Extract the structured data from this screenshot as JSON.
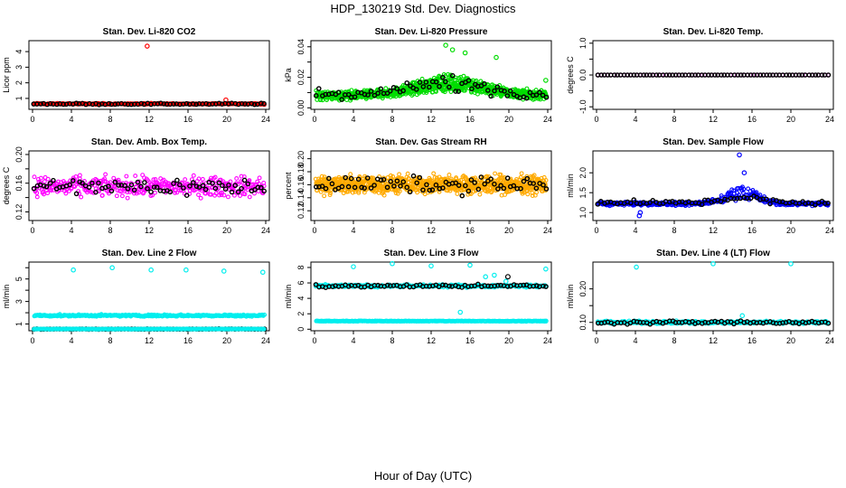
{
  "figure": {
    "title": "HDP_130219  Std. Dev. Diagnostics",
    "xlabel": "Hour of Day (UTC)"
  },
  "chart_data": [
    {
      "type": "scatter",
      "title": "Stan. Dev. Li-820 CO2",
      "ylabel": "Licor ppm",
      "xlim": [
        0,
        24
      ],
      "ylim": [
        0.3,
        4.7
      ],
      "xticks": [
        0,
        4,
        8,
        12,
        16,
        20,
        24
      ],
      "xtick_labels": [
        "0",
        "4",
        "8",
        "12",
        "16",
        "20",
        "24"
      ],
      "yticks": [
        1,
        2,
        3,
        4
      ],
      "ytick_labels": [
        "1",
        "2",
        "3",
        "4"
      ],
      "series": [
        {
          "name": "primary",
          "color": "#ff0000",
          "y_center": 0.65,
          "spread": 0.06,
          "points_per_hour": 12,
          "outliers": [
            {
              "x": 11.8,
              "y": 4.35
            },
            {
              "x": 19.9,
              "y": 0.9
            }
          ]
        },
        {
          "name": "hourly",
          "color": "#000000",
          "y_center": 0.65,
          "spread": 0.07,
          "points_per_hour": 3
        }
      ]
    },
    {
      "type": "scatter",
      "title": "Stan. Dev. Li-820 Pressure",
      "ylabel": "kPa",
      "xlim": [
        0,
        24
      ],
      "ylim": [
        -0.001,
        0.044
      ],
      "xticks": [
        0,
        4,
        8,
        12,
        16,
        20,
        24
      ],
      "xtick_labels": [
        "0",
        "4",
        "8",
        "12",
        "16",
        "20",
        "24"
      ],
      "yticks": [
        0,
        0.01,
        0.02,
        0.03,
        0.04
      ],
      "ytick_labels": [
        "0.00",
        "",
        "0.02",
        "",
        "0.04"
      ],
      "series": [
        {
          "name": "primary",
          "color": "#00dd00",
          "y_center": 0.008,
          "spread": 0.004,
          "points_per_hour": 40,
          "bulge": {
            "center": 14,
            "width": 5,
            "height": 0.009
          },
          "outliers": [
            {
              "x": 13.5,
              "y": 0.041
            },
            {
              "x": 14.2,
              "y": 0.038
            },
            {
              "x": 15.5,
              "y": 0.036
            },
            {
              "x": 18.7,
              "y": 0.033
            },
            {
              "x": 23.8,
              "y": 0.018
            }
          ]
        },
        {
          "name": "hourly",
          "color": "#000000",
          "y_center": 0.009,
          "spread": 0.005,
          "points_per_hour": 3,
          "bulge": {
            "center": 14,
            "width": 5,
            "height": 0.008
          }
        }
      ]
    },
    {
      "type": "scatter",
      "title": "Stan. Dev. Li-820 Temp.",
      "ylabel": "degrees C",
      "xlim": [
        0,
        24
      ],
      "ylim": [
        -1.08,
        1.08
      ],
      "xticks": [
        0,
        4,
        8,
        12,
        16,
        20,
        24
      ],
      "xtick_labels": [
        "0",
        "4",
        "8",
        "12",
        "16",
        "20",
        "24"
      ],
      "yticks": [
        -1,
        -0.5,
        0,
        0.5,
        1
      ],
      "ytick_labels": [
        "-1.0",
        "",
        "0.0",
        "",
        "1.0"
      ],
      "series": [
        {
          "name": "primary",
          "color": "#ff00ff",
          "y_center": 0,
          "spread": 0,
          "points_per_hour": 3
        },
        {
          "name": "hourly",
          "color": "#000000",
          "y_center": 0,
          "spread": 0,
          "points_per_hour": 3
        }
      ]
    },
    {
      "type": "scatter",
      "title": "Stan. Dev. Amb. Box Temp.",
      "ylabel": "degrees C",
      "xlim": [
        0,
        24
      ],
      "ylim": [
        0.108,
        0.205
      ],
      "xticks": [
        0,
        4,
        8,
        12,
        16,
        20,
        24
      ],
      "xtick_labels": [
        "0",
        "4",
        "8",
        "12",
        "16",
        "20",
        "24"
      ],
      "yticks": [
        0.12,
        0.14,
        0.16,
        0.18,
        0.2
      ],
      "ytick_labels": [
        "0.12",
        "",
        "0.16",
        "",
        "0.20"
      ],
      "series": [
        {
          "name": "primary",
          "color": "#ff00ff",
          "y_center": 0.155,
          "spread": 0.02,
          "points_per_hour": 16
        },
        {
          "name": "hourly",
          "color": "#000000",
          "y_center": 0.155,
          "spread": 0.017,
          "points_per_hour": 3
        }
      ]
    },
    {
      "type": "scatter",
      "title": "Stan. Dev. Gas Stream RH",
      "ylabel": "percent",
      "xlim": [
        0,
        24
      ],
      "ylim": [
        0.105,
        0.212
      ],
      "xticks": [
        0,
        4,
        8,
        12,
        16,
        20,
        24
      ],
      "xtick_labels": [
        "0",
        "4",
        "8",
        "12",
        "16",
        "20",
        "24"
      ],
      "yticks": [
        0.12,
        0.14,
        0.16,
        0.18,
        0.2
      ],
      "ytick_labels": [
        "0.12",
        "0.14",
        "0.16",
        "0.18",
        "0.20"
      ],
      "series": [
        {
          "name": "primary",
          "color": "#ffaa00",
          "y_center": 0.16,
          "spread": 0.02,
          "points_per_hour": 36
        },
        {
          "name": "hourly",
          "color": "#000000",
          "y_center": 0.16,
          "spread": 0.018,
          "points_per_hour": 3
        }
      ]
    },
    {
      "type": "scatter",
      "title": "Stan. Dev. Sample Flow",
      "ylabel": "ml/min",
      "xlim": [
        0,
        24
      ],
      "ylim": [
        0.8,
        2.55
      ],
      "xticks": [
        0,
        4,
        8,
        12,
        16,
        20,
        24
      ],
      "xtick_labels": [
        "0",
        "4",
        "8",
        "12",
        "16",
        "20",
        "24"
      ],
      "yticks": [
        1.0,
        1.5,
        2.0
      ],
      "ytick_labels": [
        "1.0",
        "1.5",
        "2.0"
      ],
      "series": [
        {
          "name": "primary",
          "color": "#0000ff",
          "y_center": 1.22,
          "spread": 0.07,
          "points_per_hour": 16,
          "bulge": {
            "center": 15,
            "width": 2.5,
            "height": 0.3
          },
          "outliers": [
            {
              "x": 14.7,
              "y": 2.45
            },
            {
              "x": 15.2,
              "y": 2.0
            },
            {
              "x": 4.4,
              "y": 0.92
            },
            {
              "x": 4.5,
              "y": 1.0
            }
          ]
        },
        {
          "name": "hourly",
          "color": "#000000",
          "y_center": 1.25,
          "spread": 0.08,
          "points_per_hour": 3,
          "bulge": {
            "center": 15,
            "width": 2.5,
            "height": 0.15
          }
        }
      ]
    },
    {
      "type": "scatter",
      "title": "Stan. Dev. Line 2 Flow",
      "ylabel": "ml/min",
      "xlim": [
        0,
        24
      ],
      "ylim": [
        0.4,
        6.5
      ],
      "xticks": [
        0,
        4,
        8,
        12,
        16,
        20,
        24
      ],
      "xtick_labels": [
        "0",
        "4",
        "8",
        "12",
        "16",
        "20",
        "24"
      ],
      "yticks": [
        1,
        2,
        3,
        4,
        5,
        6
      ],
      "ytick_labels": [
        "1",
        "",
        "3",
        "",
        "5",
        ""
      ],
      "series": [
        {
          "name": "primary",
          "color": "#00eeee",
          "y_center": 1.75,
          "spread": 0.12,
          "points_per_hour": 14,
          "outliers": [
            {
              "x": 4.2,
              "y": 5.8
            },
            {
              "x": 8.2,
              "y": 6.0
            },
            {
              "x": 12.2,
              "y": 5.8
            },
            {
              "x": 15.8,
              "y": 5.8
            },
            {
              "x": 19.7,
              "y": 5.7
            },
            {
              "x": 23.7,
              "y": 5.6
            }
          ]
        },
        {
          "name": "hourly",
          "color": "#000000",
          "y_center": 0.55,
          "spread": 0.03,
          "points_per_hour": 3
        },
        {
          "name": "secondary",
          "color": "#00eeee",
          "y_center": 0.55,
          "spread": 0.03,
          "points_per_hour": 14
        }
      ]
    },
    {
      "type": "scatter",
      "title": "Stan. Dev. Line 3 Flow",
      "ylabel": "ml/min",
      "xlim": [
        0,
        24
      ],
      "ylim": [
        -0.2,
        8.7
      ],
      "xticks": [
        0,
        4,
        8,
        12,
        16,
        20,
        24
      ],
      "xtick_labels": [
        "0",
        "4",
        "8",
        "12",
        "16",
        "20",
        "24"
      ],
      "yticks": [
        0,
        2,
        4,
        6,
        8
      ],
      "ytick_labels": [
        "0",
        "2",
        "4",
        "6",
        "8"
      ],
      "series": [
        {
          "name": "primary",
          "color": "#00eeee",
          "y_center": 5.6,
          "spread": 0.25,
          "points_per_hour": 12,
          "outliers": [
            {
              "x": 4.0,
              "y": 8.1
            },
            {
              "x": 8.0,
              "y": 8.5
            },
            {
              "x": 12.0,
              "y": 8.2
            },
            {
              "x": 16.0,
              "y": 8.3
            },
            {
              "x": 17.6,
              "y": 6.8
            },
            {
              "x": 18.5,
              "y": 7.0
            },
            {
              "x": 19.7,
              "y": 6.2
            },
            {
              "x": 23.8,
              "y": 7.8
            },
            {
              "x": 15.0,
              "y": 2.2
            }
          ]
        },
        {
          "name": "hourly",
          "color": "#000000",
          "y_center": 5.6,
          "spread": 0.3,
          "points_per_hour": 3,
          "outliers": [
            {
              "x": 19.9,
              "y": 6.8
            }
          ]
        },
        {
          "name": "secondary",
          "color": "#00eeee",
          "y_center": 1.05,
          "spread": 0.06,
          "points_per_hour": 14
        }
      ]
    },
    {
      "type": "scatter",
      "title": "Stan. Dev. Line 4 (LT) Flow",
      "ylabel": "ml/min",
      "xlim": [
        0,
        24
      ],
      "ylim": [
        0.075,
        0.28
      ],
      "xticks": [
        0,
        4,
        8,
        12,
        16,
        20,
        24
      ],
      "xtick_labels": [
        "0",
        "4",
        "8",
        "12",
        "16",
        "20",
        "24"
      ],
      "yticks": [
        0.1,
        0.15,
        0.2
      ],
      "ytick_labels": [
        "0.10",
        "",
        "0.20"
      ],
      "series": [
        {
          "name": "primary",
          "color": "#00eeee",
          "y_center": 0.1,
          "spread": 0.006,
          "points_per_hour": 14,
          "outliers": [
            {
              "x": 4.1,
              "y": 0.265
            },
            {
              "x": 12.0,
              "y": 0.275
            },
            {
              "x": 20.0,
              "y": 0.275
            },
            {
              "x": 15.0,
              "y": 0.12
            }
          ]
        },
        {
          "name": "hourly",
          "color": "#000000",
          "y_center": 0.1,
          "spread": 0.007,
          "points_per_hour": 3
        }
      ]
    }
  ]
}
